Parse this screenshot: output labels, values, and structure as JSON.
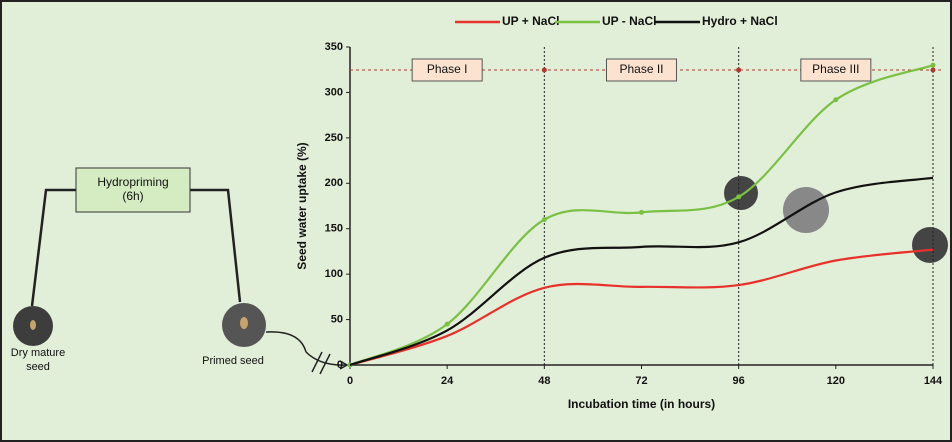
{
  "chart_data": {
    "type": "line",
    "x": [
      0,
      24,
      48,
      72,
      96,
      120,
      144
    ],
    "series": [
      {
        "name": "UP + NaCl",
        "color": "#e8312a",
        "values": [
          0,
          32,
          85,
          86,
          88,
          115,
          127
        ]
      },
      {
        "name": "UP - NaCl",
        "color": "#7ac143",
        "values": [
          0,
          45,
          160,
          168,
          185,
          292,
          330
        ]
      },
      {
        "name": "Hydro + NaCl",
        "color": "#111111",
        "values": [
          0,
          38,
          118,
          130,
          135,
          190,
          206
        ]
      }
    ],
    "xlim": [
      0,
      144
    ],
    "ylim": [
      0,
      350
    ],
    "xticks": [
      0,
      24,
      48,
      72,
      96,
      120,
      144
    ],
    "yticks": [
      0,
      50,
      100,
      150,
      200,
      250,
      300,
      350
    ],
    "x_label": "Incubation time (in hours)",
    "y_label": "Seed water uptake (%)",
    "legend": "top",
    "phases": [
      {
        "label": "Phase I",
        "start": 0,
        "end": 48
      },
      {
        "label": "Phase II",
        "start": 48,
        "end": 96
      },
      {
        "label": "Phase III",
        "start": 96,
        "end": 144
      }
    ]
  },
  "diagram": {
    "treatment": "Hydropriming\n(6h)",
    "start_seed": "Dry mature\nseed",
    "end_seed": "Primed seed"
  }
}
